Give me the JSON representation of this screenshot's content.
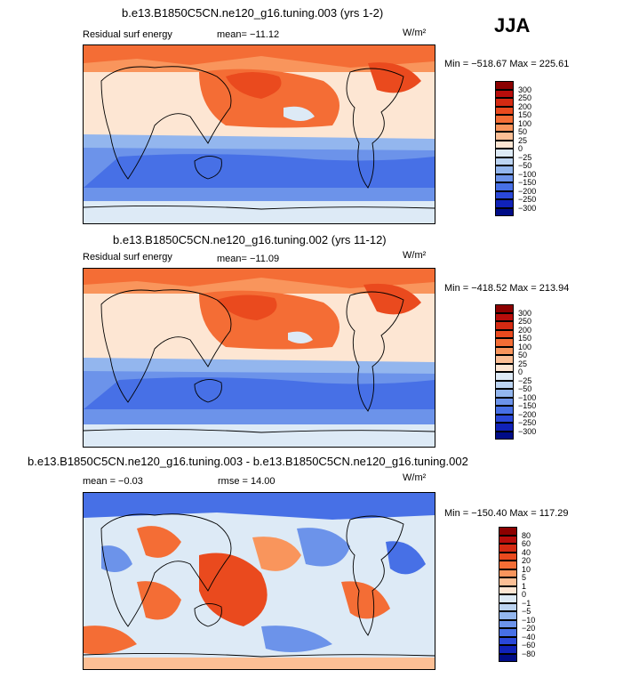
{
  "season": "JJA",
  "panels": [
    {
      "title": "b.e13.B1850C5CN.ne120_g16.tuning.003 (yrs 1-2)",
      "left_label": "Residual surf energy",
      "center_label": "mean= −11.12",
      "units": "W/m²",
      "minmax": "Min = −518.67  Max = 225.61",
      "levels": [
        "300",
        "250",
        "200",
        "150",
        "100",
        "50",
        "25",
        "0",
        "−25",
        "−50",
        "−100",
        "−150",
        "−200",
        "−250",
        "−300"
      ],
      "colors": [
        "#8c0000",
        "#b80d0b",
        "#d42a12",
        "#ea4a1e",
        "#f46d35",
        "#f9955c",
        "#fcbf95",
        "#fde6d3",
        "#ddeaf6",
        "#bcd4f2",
        "#93b6ee",
        "#6c93ea",
        "#4770e6",
        "#2a48d8",
        "#1022b8",
        "#000c87"
      ]
    },
    {
      "title": "b.e13.B1850C5CN.ne120_g16.tuning.002 (yrs 11-12)",
      "left_label": "Residual surf energy",
      "center_label": "mean= −11.09",
      "units": "W/m²",
      "minmax": "Min = −418.52  Max = 213.94",
      "levels": [
        "300",
        "250",
        "200",
        "150",
        "100",
        "50",
        "25",
        "0",
        "−25",
        "−50",
        "−100",
        "−150",
        "−200",
        "−250",
        "−300"
      ],
      "colors": [
        "#8c0000",
        "#b80d0b",
        "#d42a12",
        "#ea4a1e",
        "#f46d35",
        "#f9955c",
        "#fcbf95",
        "#fde6d3",
        "#ddeaf6",
        "#bcd4f2",
        "#93b6ee",
        "#6c93ea",
        "#4770e6",
        "#2a48d8",
        "#1022b8",
        "#000c87"
      ]
    },
    {
      "title": "b.e13.B1850C5CN.ne120_g16.tuning.003 - b.e13.B1850C5CN.ne120_g16.tuning.002",
      "left_label": "mean =  −0.03",
      "center_label": "rmse =  14.00",
      "units": "W/m²",
      "minmax": "Min = −150.40  Max = 117.29",
      "levels": [
        "80",
        "60",
        "40",
        "20",
        "10",
        "5",
        "1",
        "0",
        "−1",
        "−5",
        "−10",
        "−20",
        "−40",
        "−60",
        "−80"
      ],
      "colors": [
        "#8c0000",
        "#b80d0b",
        "#d42a12",
        "#ea4a1e",
        "#f46d35",
        "#f9955c",
        "#fcbf95",
        "#fde6d3",
        "#ddeaf6",
        "#bcd4f2",
        "#93b6ee",
        "#6c93ea",
        "#4770e6",
        "#2a48d8",
        "#1022b8",
        "#000c87"
      ]
    }
  ]
}
